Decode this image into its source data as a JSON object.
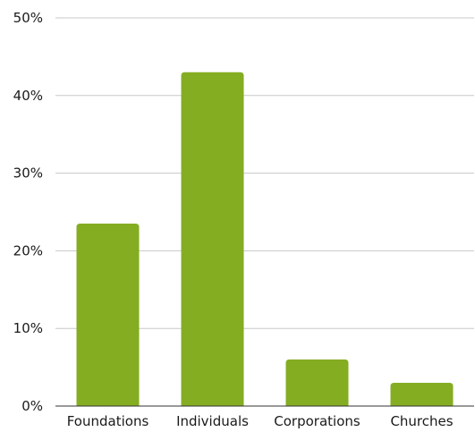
{
  "chart_data": {
    "type": "bar",
    "title": "",
    "xlabel": "",
    "ylabel": "",
    "categories": [
      "Foundations",
      "Individuals",
      "Corporations",
      "Churches"
    ],
    "values": [
      23.5,
      43,
      6,
      3
    ],
    "value_unit": "percent",
    "ylim": [
      0,
      50
    ],
    "yticks": [
      0,
      10,
      20,
      30,
      40,
      50
    ],
    "ytick_labels": [
      "0%",
      "10%",
      "20%",
      "30%",
      "40%",
      "50%"
    ],
    "grid": true,
    "legend": "none",
    "colors": {
      "bar": "#84ad22",
      "grid": "#c8c8c8",
      "axis": "#333333",
      "text": "#1a1a1a"
    }
  }
}
